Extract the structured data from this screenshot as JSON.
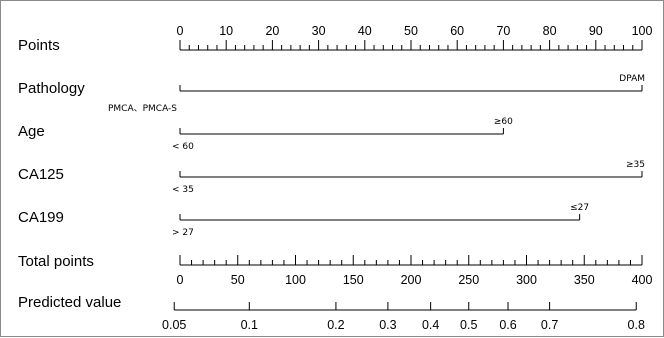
{
  "chart_data": {
    "type": "nomogram",
    "points_scale": {
      "label": "Points",
      "range": [
        0,
        100
      ],
      "major_ticks": [
        0,
        10,
        20,
        30,
        40,
        50,
        60,
        70,
        80,
        90,
        100
      ],
      "minor_step": 2
    },
    "variables": [
      {
        "label": "Pathology",
        "levels": [
          {
            "text": "PMCA、PMCA-S",
            "points": 0
          },
          {
            "text": "DPAM",
            "points": 100
          }
        ]
      },
      {
        "label": "Age",
        "levels": [
          {
            "text": "< 60",
            "points": 0
          },
          {
            "text": "≥60",
            "points": 70
          }
        ]
      },
      {
        "label": "CA125",
        "levels": [
          {
            "text": "< 35",
            "points": 0
          },
          {
            "text": "≥35",
            "points": 100
          }
        ]
      },
      {
        "label": "CA199",
        "levels": [
          {
            "text": "> 27",
            "points": 0
          },
          {
            "text": "≤27",
            "points": 86.5
          }
        ]
      }
    ],
    "total_points": {
      "label": "Total points",
      "range": [
        0,
        400
      ],
      "major_ticks": [
        0,
        50,
        100,
        150,
        200,
        250,
        300,
        350,
        400
      ],
      "minor_step": 10
    },
    "predicted_value": {
      "label": "Predicted value",
      "ticks": [
        {
          "value": "0.05",
          "total_points": -5
        },
        {
          "value": "0.1",
          "total_points": 60
        },
        {
          "value": "0.2",
          "total_points": 135
        },
        {
          "value": "0.3",
          "total_points": 180
        },
        {
          "value": "0.4",
          "total_points": 217
        },
        {
          "value": "0.5",
          "total_points": 250
        },
        {
          "value": "0.6",
          "total_points": 284
        },
        {
          "value": "0.7",
          "total_points": 320
        },
        {
          "value": "0.8",
          "total_points": 395
        }
      ]
    }
  }
}
